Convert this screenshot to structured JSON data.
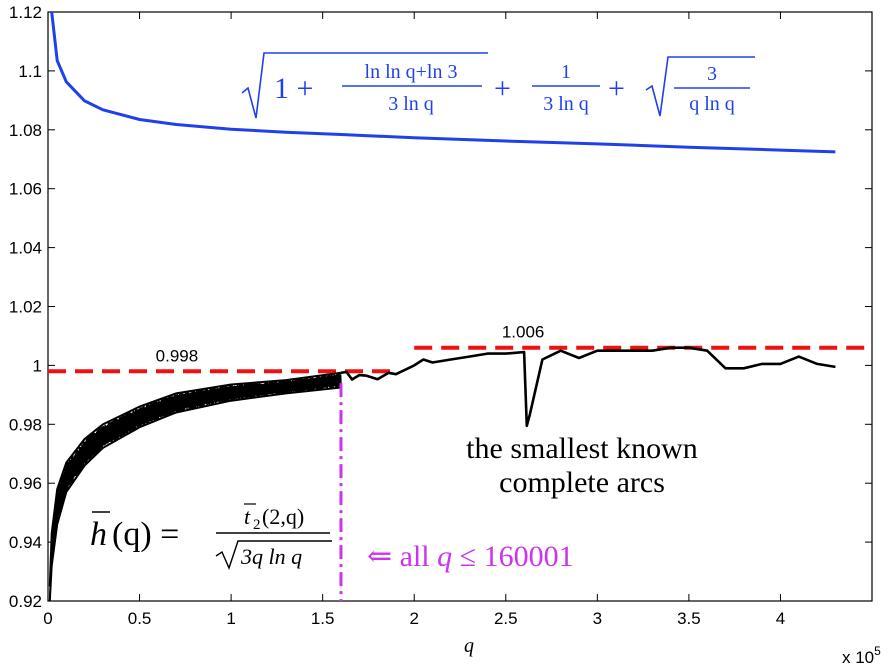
{
  "chart_data": {
    "type": "line",
    "x_unit": "x 10^5",
    "xlim": [
      0,
      4.5
    ],
    "ylim": [
      0.92,
      1.12
    ],
    "x_ticks": [
      "0",
      "0.5",
      "1",
      "1.5",
      "2",
      "2.5",
      "3",
      "3.5",
      "4"
    ],
    "x_tick_values": [
      0,
      0.5,
      1,
      1.5,
      2,
      2.5,
      3,
      3.5,
      4
    ],
    "y_ticks": [
      "0.92",
      "0.94",
      "0.96",
      "0.98",
      "1",
      "1.02",
      "1.04",
      "1.06",
      "1.08",
      "1.1",
      "1.12"
    ],
    "y_tick_values": [
      0.92,
      0.94,
      0.96,
      0.98,
      1.0,
      1.02,
      1.04,
      1.06,
      1.08,
      1.1,
      1.12
    ],
    "xlabel": "q",
    "x_multiplier_base": "x 10",
    "x_multiplier_exp": "5",
    "colors": {
      "upper_bound": "#2040ee",
      "h_bar": "#000000",
      "dashed_levels": "#ee1111",
      "marker": "#cc33ee"
    },
    "series": [
      {
        "name": "upper bound sqrt(1 + (ln ln q + ln 3)/(3 ln q) + 1/(3 ln q) + sqrt(3/(q ln q)))",
        "color": "#2040ee",
        "x": [
          0.02,
          0.05,
          0.1,
          0.2,
          0.3,
          0.5,
          0.7,
          1.0,
          1.3,
          1.6,
          2.0,
          2.5,
          3.0,
          3.5,
          4.0,
          4.3
        ],
        "y": [
          1.12,
          1.1035,
          1.0963,
          1.0898,
          1.0868,
          1.0835,
          1.0818,
          1.0802,
          1.0792,
          1.0784,
          1.0773,
          1.0762,
          1.0752,
          1.0741,
          1.0731,
          1.0725
        ]
      },
      {
        "name": "h-bar(q) for all q <= 160001 (lower envelope)",
        "color": "#000000",
        "x": [
          0.01,
          0.02,
          0.05,
          0.1,
          0.2,
          0.3,
          0.5,
          0.7,
          1.0,
          1.3,
          1.6
        ],
        "y": [
          0.92,
          0.932,
          0.946,
          0.957,
          0.966,
          0.972,
          0.979,
          0.984,
          0.988,
          0.9905,
          0.9925
        ]
      },
      {
        "name": "h-bar(q) for all q <= 160001 (upper envelope)",
        "color": "#000000",
        "x": [
          0.01,
          0.02,
          0.05,
          0.1,
          0.2,
          0.3,
          0.5,
          0.7,
          1.0,
          1.3,
          1.6
        ],
        "y": [
          0.925,
          0.943,
          0.958,
          0.967,
          0.975,
          0.98,
          0.986,
          0.9905,
          0.9935,
          0.995,
          0.9975
        ]
      },
      {
        "name": "the smallest known complete arcs",
        "color": "#000000",
        "x": [
          1.6,
          1.63,
          1.66,
          1.7,
          1.74,
          1.8,
          1.86,
          1.9,
          2.0,
          2.05,
          2.1,
          2.2,
          2.3,
          2.4,
          2.5,
          2.6,
          2.615,
          2.63,
          2.7,
          2.8,
          2.9,
          3.0,
          3.1,
          3.2,
          3.3,
          3.4,
          3.5,
          3.6,
          3.7,
          3.8,
          3.9,
          4.0,
          4.1,
          4.2,
          4.3
        ],
        "y": [
          0.9975,
          0.9978,
          0.9952,
          0.9967,
          0.9965,
          0.9953,
          0.9975,
          0.997,
          1.0,
          1.002,
          1.001,
          1.002,
          1.003,
          1.004,
          1.004,
          1.0045,
          0.9795,
          0.983,
          1.002,
          1.005,
          1.0025,
          1.005,
          1.005,
          1.005,
          1.005,
          1.006,
          1.006,
          1.005,
          0.999,
          0.999,
          1.0005,
          1.0005,
          1.003,
          1.0005,
          0.9995
        ]
      }
    ],
    "hlines": [
      {
        "label": "0.998",
        "y": 0.998,
        "x_start": 0.0,
        "x_end": 1.9,
        "color": "#ee1111"
      },
      {
        "label": "1.006",
        "y": 1.006,
        "x_start": 2.0,
        "x_end": 4.5,
        "color": "#ee1111"
      }
    ],
    "vline": {
      "x": 1.6,
      "color": "#cc33ee"
    },
    "annotations": {
      "smallest_line1": "the smallest known",
      "smallest_line2": "complete arcs",
      "marker_arrow": "⇐ all",
      "marker_var": "q",
      "marker_cond": "≤ 160001",
      "h_lhs_h": "h",
      "h_lhs_rest": "(q) =",
      "h_num": "t",
      "h_num_sub": "2",
      "h_num_args": "(2,q)",
      "h_den": "3q ln q",
      "bound_one": "1 +",
      "bound_frac1_num": "ln ln q+ln 3",
      "bound_frac1_den": "3 ln q",
      "bound_plus": "+",
      "bound_frac2_num": "1",
      "bound_frac2_den": "3 ln q",
      "bound_frac3_num": "3",
      "bound_frac3_den": "q ln q"
    }
  }
}
